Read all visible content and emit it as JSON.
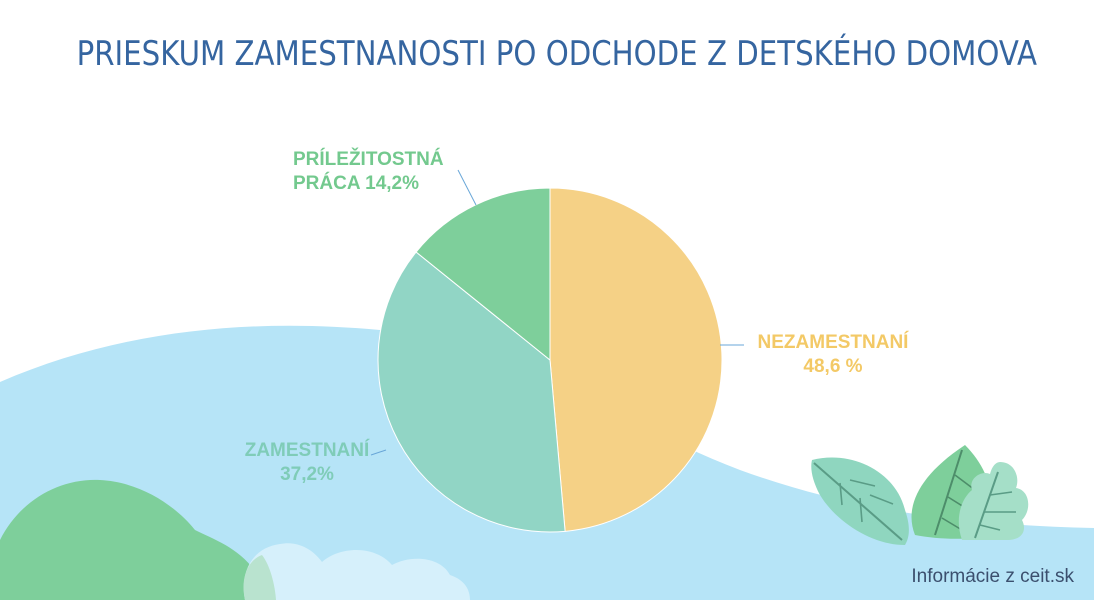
{
  "title": "PRIESKUM ZAMESTNANOSTI PO ODCHODE Z DETSKÉHO DOMOVA",
  "source": "Informácie z ceit.sk",
  "colors": {
    "title": "#3565a0",
    "unemployed": "#f5d186",
    "employed": "#91d5c5",
    "occasional": "#7ecf9b",
    "sky": "#b6e4f7",
    "bush": "#7ecf9b",
    "cloud": "#d2eefa",
    "leaf": "#8fd6bf"
  },
  "labels": {
    "occasional": [
      "PRÍLEŽITOSTNÁ",
      "PRÁCA 14,2%"
    ],
    "unemployed": [
      "NEZAMESTNANÍ",
      "48,6 %"
    ],
    "employed": [
      "ZAMESTNANÍ",
      "37,2%"
    ]
  },
  "chart_data": {
    "type": "pie",
    "categories": [
      "NEZAMESTNANÍ",
      "ZAMESTNANÍ",
      "PRÍLEŽITOSTNÁ PRÁCA"
    ],
    "values": [
      48.6,
      37.2,
      14.2
    ],
    "unit": "%",
    "title": "PRIESKUM ZAMESTNANOSTI PO ODCHODE Z DETSKÉHO DOMOVA",
    "legend": "none",
    "data_labels": [
      "NEZAMESTNANÍ 48,6 %",
      "ZAMESTNANÍ 37,2%",
      "PRÍLEŽITOSTNÁ PRÁCA 14,2%"
    ]
  }
}
